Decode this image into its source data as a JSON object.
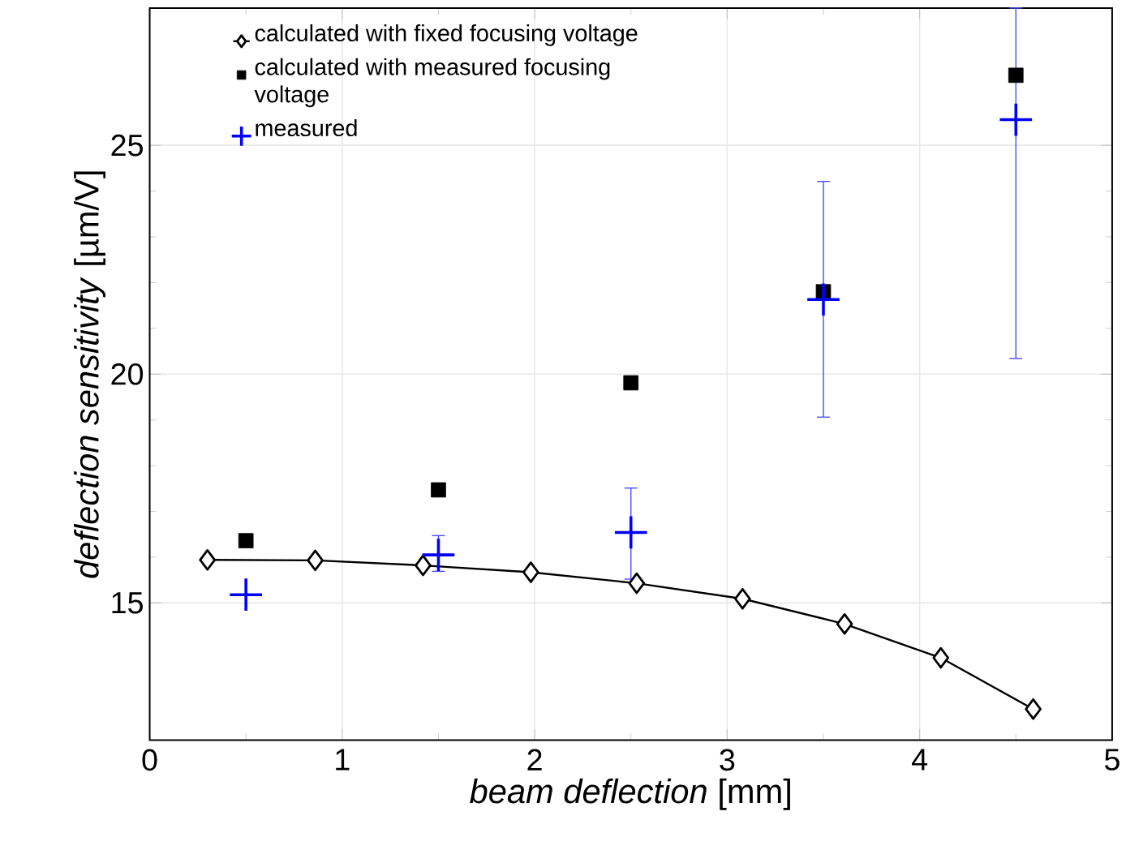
{
  "chart_data": {
    "type": "scatter",
    "xlabel": "*beam deflection* [mm]",
    "ylabel": "*deflection sensitivity* [µm/V]",
    "xlim": [
      0,
      5
    ],
    "ylim": [
      12,
      28
    ],
    "xticks": [
      0,
      1,
      2,
      3,
      4,
      5
    ],
    "yticks": [
      15,
      20,
      25
    ],
    "grid": true,
    "legend": "top left",
    "series": [
      {
        "name": "calculated with fixed focusing voltage",
        "type": "line",
        "marker": "diamond",
        "color": "#000000",
        "x": [
          0.3,
          0.86,
          1.42,
          1.98,
          2.53,
          3.08,
          3.61,
          4.11,
          4.59
        ],
        "values": [
          15.94,
          15.93,
          15.82,
          15.67,
          15.43,
          15.09,
          14.54,
          13.8,
          12.68
        ]
      },
      {
        "name": "calculated with measured focusing voltage",
        "type": "scatter",
        "marker": "square",
        "color": "#000000",
        "x": [
          0.5,
          1.5,
          2.5,
          3.5,
          4.5
        ],
        "values": [
          16.36,
          17.47,
          19.81,
          21.8,
          26.53
        ]
      },
      {
        "name": "measured",
        "type": "scatter",
        "marker": "cross",
        "color": "#0000ff",
        "x": [
          0.5,
          1.5,
          2.5,
          3.5,
          4.5
        ],
        "values": [
          15.18,
          16.05,
          16.54,
          21.63,
          25.56
        ],
        "errors": [
          null,
          [
            15.69,
            16.47
          ],
          [
            15.52,
            17.51
          ],
          [
            19.06,
            24.21
          ],
          [
            20.34,
            28
          ]
        ]
      }
    ]
  }
}
